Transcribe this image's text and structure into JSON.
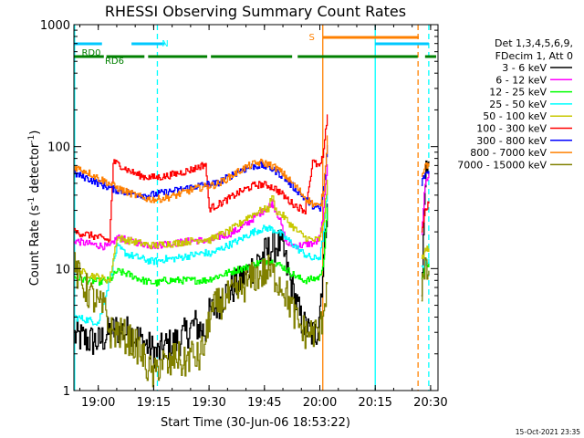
{
  "chart_data": {
    "type": "line",
    "title": "RHESSI Observing Summary Count Rates",
    "xlabel": "Start Time (30-Jun-06 18:53:22)",
    "ylabel_main": "Count Rate (s",
    "ylabel_sup": "-1",
    "ylabel_mid": " detector",
    "ylabel_end": ")",
    "footer": "15-Oct-2021 23:35",
    "x_unit": "minutes after 18:00 UT",
    "xlim": [
      53.4,
      152.0
    ],
    "ylim": [
      1,
      1000
    ],
    "yscale": "log",
    "x_ticks": [
      {
        "value": 60,
        "label": "19:00"
      },
      {
        "value": 75,
        "label": "19:15"
      },
      {
        "value": 90,
        "label": "19:30"
      },
      {
        "value": 105,
        "label": "19:45"
      },
      {
        "value": 120,
        "label": "20:00"
      },
      {
        "value": 135,
        "label": "20:15"
      },
      {
        "value": 150,
        "label": "20:30"
      }
    ],
    "y_ticks": [
      {
        "value": 1,
        "label": "1"
      },
      {
        "value": 10,
        "label": "10"
      },
      {
        "value": 100,
        "label": "100"
      },
      {
        "value": 1000,
        "label": "1000"
      }
    ],
    "legend_header": [
      "Det 1,3,4,5,6,9,",
      "FDecim 1, Att 0"
    ],
    "legend_position": "right",
    "series": [
      {
        "name": "3 - 6 keV",
        "color": "#000000",
        "x": [
          53.5,
          57,
          60,
          63,
          65,
          68,
          70,
          72,
          74,
          76,
          78,
          80,
          83,
          86,
          89,
          90,
          92,
          95,
          98,
          100,
          102,
          104,
          106,
          108,
          109,
          110,
          111,
          113,
          115,
          117,
          118,
          119,
          120,
          121,
          122,
          147.5,
          148.5,
          149.5
        ],
        "y": [
          2.8,
          2.6,
          2.5,
          3.0,
          3.2,
          3.0,
          2.8,
          2.5,
          2.2,
          2.0,
          2.3,
          2.4,
          2.8,
          3.5,
          3.0,
          4.2,
          5.0,
          6.5,
          7.5,
          9.0,
          10.5,
          12.5,
          14.0,
          15.5,
          16.0,
          14.0,
          10.0,
          6.0,
          3.6,
          3.0,
          2.9,
          3.0,
          5.0,
          12.0,
          40.0,
          5.0,
          60.0,
          70.0
        ]
      },
      {
        "name": "6 - 12 keV",
        "color": "#ff00ff",
        "x": [
          53.5,
          57,
          60,
          63,
          65,
          68,
          70,
          72,
          74,
          76,
          78,
          80,
          83,
          86,
          89,
          90,
          92,
          95,
          98,
          100,
          102,
          104,
          106,
          107,
          108,
          109,
          110,
          111,
          113,
          115,
          117,
          118,
          119,
          120,
          121,
          122,
          147.5,
          148.5,
          149.5
        ],
        "y": [
          17.0,
          16.0,
          15.5,
          15.0,
          18.0,
          17.0,
          16.5,
          16.0,
          15.5,
          15.5,
          16.0,
          16.0,
          16.5,
          17.0,
          17.0,
          16.5,
          18.0,
          19.0,
          21.0,
          23.0,
          26.0,
          29.0,
          32.0,
          35.0,
          30.0,
          26.0,
          20.0,
          16.0,
          15.5,
          15.5,
          16.0,
          16.0,
          16.5,
          18.0,
          30.0,
          75.0,
          20.0,
          50.0,
          60.0
        ]
      },
      {
        "name": "12 - 25 keV",
        "color": "#00ff00",
        "x": [
          53.5,
          57,
          60,
          63,
          65,
          68,
          70,
          72,
          74,
          76,
          78,
          80,
          83,
          86,
          89,
          90,
          92,
          95,
          98,
          100,
          102,
          104,
          106,
          108,
          110,
          112,
          114,
          116,
          118,
          120,
          121,
          122,
          147.5,
          148.5,
          149.5
        ],
        "y": [
          8.5,
          8.0,
          7.8,
          8.0,
          9.5,
          9.0,
          8.5,
          8.0,
          7.7,
          7.6,
          8.0,
          8.0,
          8.0,
          8.0,
          8.0,
          8.2,
          8.6,
          9.2,
          9.9,
          10.2,
          10.8,
          11.3,
          11.6,
          11.1,
          10.3,
          9.3,
          8.4,
          8.0,
          8.2,
          8.5,
          12.0,
          30.0,
          8.5,
          10.0,
          11.0
        ]
      },
      {
        "name": "25 - 50 keV",
        "color": "#00ffff",
        "x": [
          53.5,
          57,
          60,
          63,
          65,
          68,
          70,
          72,
          74,
          76,
          78,
          80,
          83,
          86,
          89,
          90,
          92,
          95,
          98,
          100,
          102,
          104,
          106,
          108,
          110,
          112,
          114,
          116,
          118,
          120,
          121,
          122,
          147.5,
          148.5,
          149.5
        ],
        "y": [
          4.0,
          3.8,
          3.6,
          8.0,
          15.0,
          13.0,
          12.5,
          12.0,
          11.5,
          11.5,
          12.0,
          12.0,
          12.5,
          13.0,
          13.5,
          13.0,
          14.0,
          15.5,
          17.0,
          18.5,
          20.0,
          21.0,
          21.5,
          20.5,
          18.5,
          16.5,
          14.5,
          13.0,
          12.0,
          12.5,
          20.0,
          45.0,
          10.0,
          11.0,
          12.0
        ]
      },
      {
        "name": "50 - 100 keV",
        "color": "#c8c800",
        "x": [
          53.5,
          57,
          60,
          63,
          65,
          68,
          70,
          72,
          74,
          76,
          78,
          80,
          83,
          86,
          89,
          90,
          92,
          95,
          98,
          100,
          102,
          104,
          106,
          107,
          108,
          110,
          112,
          114,
          116,
          118,
          120,
          121,
          122,
          147.5,
          148.5,
          149.5
        ],
        "y": [
          10.0,
          9.0,
          8.5,
          8.0,
          18.0,
          17.0,
          16.5,
          16.0,
          15.5,
          15.5,
          16.0,
          16.0,
          16.5,
          17.0,
          17.5,
          17.0,
          18.5,
          20.0,
          23.0,
          26.0,
          28.0,
          30.0,
          31.0,
          40.0,
          30.0,
          27.0,
          23.0,
          20.0,
          18.0,
          17.0,
          17.5,
          25.0,
          50.0,
          12.0,
          14.0,
          15.0
        ]
      },
      {
        "name": "100 - 300 keV",
        "color": "#ff0000",
        "x": [
          53.5,
          57,
          60,
          63,
          64,
          66,
          68,
          70,
          72,
          74,
          76,
          78,
          80,
          83,
          86,
          89,
          90,
          92,
          95,
          98,
          100,
          102,
          104,
          106,
          108,
          110,
          112,
          114,
          116,
          118,
          120,
          121,
          122,
          147.5,
          148.5,
          149.5
        ],
        "y": [
          20.0,
          19.0,
          18.0,
          17.0,
          75.0,
          70.0,
          64.0,
          60.0,
          57.0,
          56.0,
          56.0,
          57.0,
          59.0,
          62.0,
          66.0,
          72.0,
          31.0,
          33.0,
          37.0,
          42.0,
          45.0,
          48.0,
          49.0,
          48.0,
          45.0,
          40.0,
          35.0,
          32.0,
          30.0,
          75.0,
          68.0,
          90.0,
          190.0,
          20.0,
          30.0,
          35.0
        ]
      },
      {
        "name": "300 - 800 keV",
        "color": "#0000ff",
        "x": [
          53.5,
          57,
          60,
          63,
          65,
          68,
          70,
          72,
          74,
          76,
          78,
          80,
          83,
          86,
          89,
          92,
          95,
          98,
          100,
          102,
          104,
          106,
          108,
          110,
          112,
          114,
          116,
          118,
          120,
          121,
          122,
          147.5,
          148.5,
          149.5
        ],
        "y": [
          60.0,
          55.0,
          50.0,
          46.0,
          44.0,
          42.0,
          41.0,
          40.0,
          40.0,
          41.0,
          42.0,
          43.0,
          45.0,
          47.0,
          49.0,
          50.0,
          56.0,
          63.0,
          66.0,
          69.0,
          70.0,
          68.0,
          63.0,
          57.0,
          49.0,
          43.0,
          37.0,
          33.0,
          30.0,
          45.0,
          100.0,
          50.0,
          60.0,
          62.0
        ]
      },
      {
        "name": "800 - 7000 keV",
        "color": "#ff8000",
        "x": [
          53.5,
          57,
          60,
          63,
          65,
          68,
          70,
          72,
          74,
          76,
          78,
          80,
          83,
          86,
          89,
          92,
          95,
          98,
          100,
          102,
          104,
          106,
          108,
          110,
          112,
          114,
          116,
          118,
          120,
          121,
          122,
          147.5,
          148.5,
          149.5
        ],
        "y": [
          68.0,
          62.0,
          55.0,
          50.0,
          46.0,
          42.0,
          40.0,
          38.0,
          37.0,
          37.0,
          38.0,
          39.0,
          42.0,
          45.0,
          47.0,
          49.0,
          55.0,
          63.0,
          68.0,
          72.0,
          74.0,
          72.0,
          67.0,
          60.0,
          52.0,
          45.0,
          38.0,
          34.0,
          32.0,
          45.0,
          120.0,
          60.0,
          70.0,
          72.0
        ]
      },
      {
        "name": "7000 - 15000 keV",
        "color": "#808000",
        "x": [
          53.5,
          55,
          57,
          59,
          60,
          62,
          63,
          65,
          67,
          69,
          71,
          73,
          75,
          77,
          79,
          81,
          83,
          85,
          87,
          89,
          90,
          92,
          94,
          96,
          98,
          100,
          102,
          104,
          106,
          108,
          110,
          112,
          114,
          116,
          118,
          120,
          121,
          122,
          147.5,
          148.5,
          149.5
        ],
        "y": [
          10.0,
          8.0,
          6.5,
          5.5,
          5.0,
          4.5,
          3.0,
          3.0,
          2.8,
          2.5,
          2.2,
          1.6,
          1.3,
          1.8,
          1.5,
          2.0,
          1.6,
          2.0,
          1.8,
          2.5,
          4.0,
          5.0,
          5.5,
          6.0,
          6.5,
          7.5,
          8.5,
          9.0,
          9.5,
          8.5,
          7.0,
          5.0,
          3.5,
          3.0,
          3.0,
          3.0,
          5.0,
          8.0,
          7.0,
          9.0,
          10.0
        ]
      }
    ],
    "annotations": {
      "attenuator_state": {
        "label": "RD0",
        "color": "#00c8ff",
        "segments": [
          [
            53.5,
            61.0
          ],
          [
            69.0,
            78.0
          ],
          [
            135.0,
            149.5
          ]
        ]
      },
      "decimation_state": {
        "label": "RD6",
        "color": "#008000",
        "segments": [
          [
            53.5,
            61.5
          ],
          [
            62.2,
            72.5
          ],
          [
            73.5,
            89.5
          ],
          [
            90.5,
            112.5
          ],
          [
            114.0,
            146.5
          ],
          [
            148.5,
            151.5
          ]
        ]
      },
      "saa_marker": {
        "label": "S",
        "color": "#ff8000",
        "segments": [
          [
            120.8,
            146.8
          ]
        ]
      },
      "night_marker": {
        "label": "N",
        "color": "#00ffff"
      },
      "rd6_label": "RD6",
      "vertical_lines": [
        {
          "x": 53.6,
          "color": "#00ffff",
          "style": "solid"
        },
        {
          "x": 76.0,
          "color": "#00ffff",
          "style": "dashed"
        },
        {
          "x": 120.8,
          "color": "#ff8000",
          "style": "solid"
        },
        {
          "x": 135.0,
          "color": "#00ffff",
          "style": "solid"
        },
        {
          "x": 146.6,
          "color": "#ff8000",
          "style": "dashed"
        },
        {
          "x": 149.5,
          "color": "#00ffff",
          "style": "dashed"
        }
      ]
    }
  }
}
